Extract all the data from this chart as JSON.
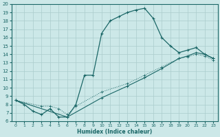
{
  "xlabel": "Humidex (Indice chaleur)",
  "bg_color": "#cce8e8",
  "grid_color": "#aacccc",
  "line_color": "#1a6666",
  "xlim": [
    -0.5,
    23.5
  ],
  "ylim": [
    6,
    20
  ],
  "xticks": [
    0,
    1,
    2,
    3,
    4,
    5,
    6,
    7,
    8,
    9,
    10,
    11,
    12,
    13,
    14,
    15,
    16,
    17,
    18,
    19,
    20,
    21,
    22,
    23
  ],
  "yticks": [
    6,
    7,
    8,
    9,
    10,
    11,
    12,
    13,
    14,
    15,
    16,
    17,
    18,
    19,
    20
  ],
  "curve1_x": [
    0,
    1,
    2,
    3,
    4,
    5,
    6,
    7,
    8,
    9,
    10,
    11,
    12,
    13,
    14,
    15,
    16,
    17,
    18,
    19,
    20,
    21,
    22,
    23
  ],
  "curve1_y": [
    8.5,
    8.0,
    7.2,
    6.8,
    7.5,
    6.5,
    6.5,
    8.0,
    11.5,
    11.5,
    16.5,
    18.0,
    18.5,
    19.0,
    19.3,
    19.5,
    18.3,
    16.0,
    15.0,
    14.2,
    14.5,
    14.8,
    14.0,
    13.5
  ],
  "curve2_x": [
    0,
    6,
    10,
    13,
    15,
    17,
    19,
    20,
    21,
    22,
    23
  ],
  "curve2_y": [
    8.5,
    6.5,
    8.8,
    10.2,
    11.2,
    12.3,
    13.5,
    13.8,
    14.2,
    14.0,
    13.5
  ],
  "curve3_x": [
    0,
    3,
    4,
    5,
    6,
    7,
    10,
    13,
    15,
    17,
    19,
    20,
    21,
    22,
    23
  ],
  "curve3_y": [
    8.5,
    7.8,
    7.8,
    7.5,
    6.8,
    7.8,
    9.5,
    10.5,
    11.5,
    12.5,
    13.5,
    13.7,
    14.0,
    13.8,
    13.3
  ]
}
